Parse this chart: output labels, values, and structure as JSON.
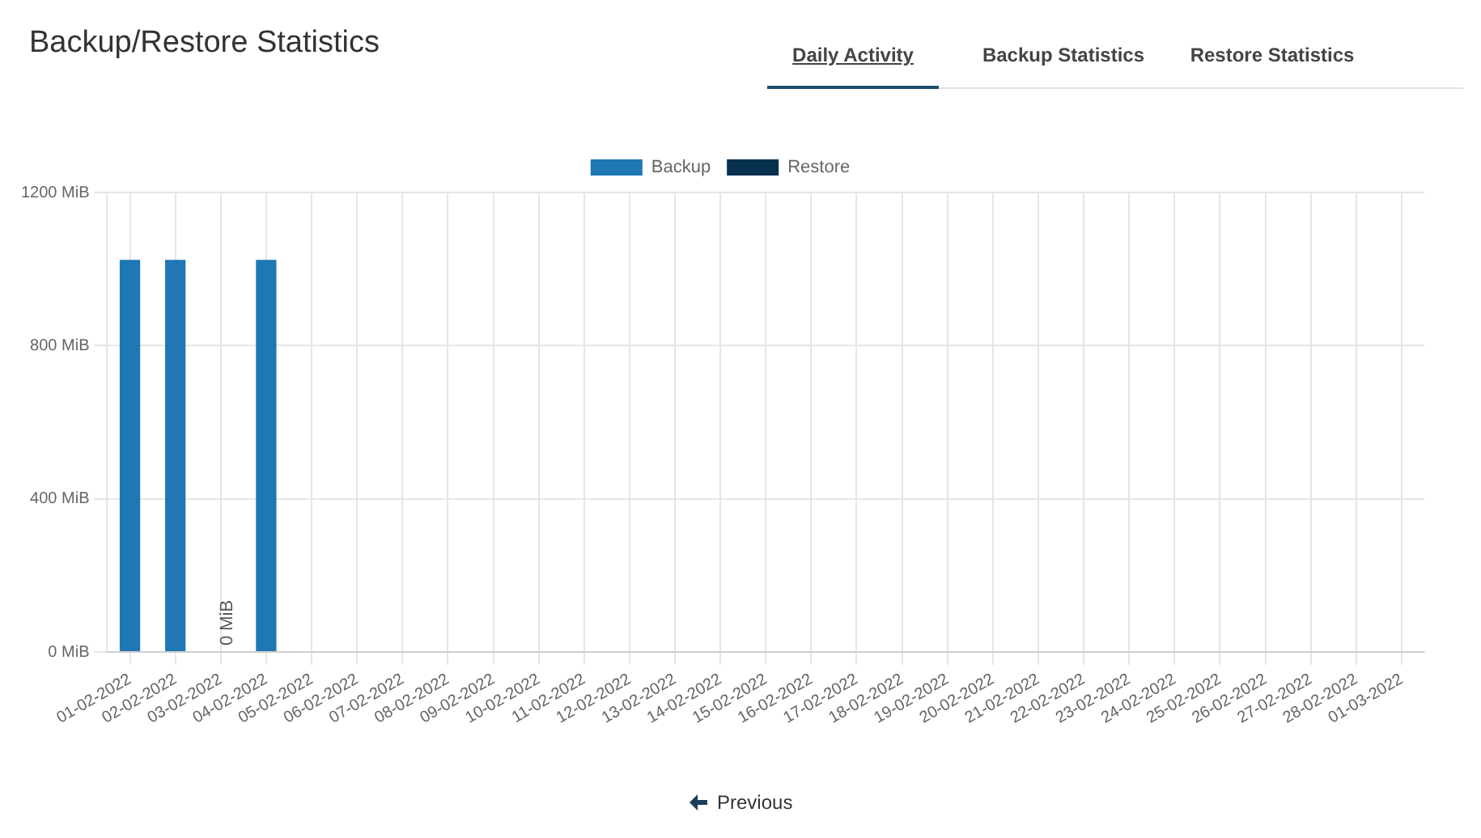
{
  "chart_data": {
    "type": "bar",
    "title": "Backup/Restore Statistics",
    "annotations": [
      "Daily Activity",
      "Backup Statistics",
      "Restore Statistics",
      "Previous"
    ],
    "categories": [
      "01-02-2022",
      "02-02-2022",
      "03-02-2022",
      "04-02-2022",
      "05-02-2022",
      "06-02-2022",
      "07-02-2022",
      "08-02-2022",
      "09-02-2022",
      "10-02-2022",
      "11-02-2022",
      "12-02-2022",
      "13-02-2022",
      "14-02-2022",
      "15-02-2022",
      "16-02-2022",
      "17-02-2022",
      "18-02-2022",
      "19-02-2022",
      "20-02-2022",
      "21-02-2022",
      "22-02-2022",
      "23-02-2022",
      "24-02-2022",
      "25-02-2022",
      "26-02-2022",
      "27-02-2022",
      "28-02-2022",
      "01-03-2022"
    ],
    "series": [
      {
        "name": "Backup",
        "color": "#1f77b4",
        "values": [
          1024,
          1024,
          0,
          1024,
          null,
          null,
          null,
          null,
          null,
          null,
          null,
          null,
          null,
          null,
          null,
          null,
          null,
          null,
          null,
          null,
          null,
          null,
          null,
          null,
          null,
          null,
          null,
          null,
          null
        ],
        "value_labels": [
          null,
          null,
          "0 MiB",
          null,
          null,
          null,
          null,
          null,
          null,
          null,
          null,
          null,
          null,
          null,
          null,
          null,
          null,
          null,
          null,
          null,
          null,
          null,
          null,
          null,
          null,
          null,
          null,
          null,
          null
        ]
      },
      {
        "name": "Restore",
        "color": "#08304f",
        "values": [
          null,
          null,
          null,
          null,
          null,
          null,
          null,
          null,
          null,
          null,
          null,
          null,
          null,
          null,
          null,
          null,
          null,
          null,
          null,
          null,
          null,
          null,
          null,
          null,
          null,
          null,
          null,
          null,
          null
        ]
      }
    ],
    "ylim": [
      0,
      1200
    ],
    "yticks": [
      {
        "value": 0,
        "label": "0 MiB"
      },
      {
        "value": 400,
        "label": "400 MiB"
      },
      {
        "value": 800,
        "label": "800 MiB"
      },
      {
        "value": 1200,
        "label": "1200 MiB"
      }
    ],
    "grid": true,
    "legend": "top",
    "stacked": true
  }
}
